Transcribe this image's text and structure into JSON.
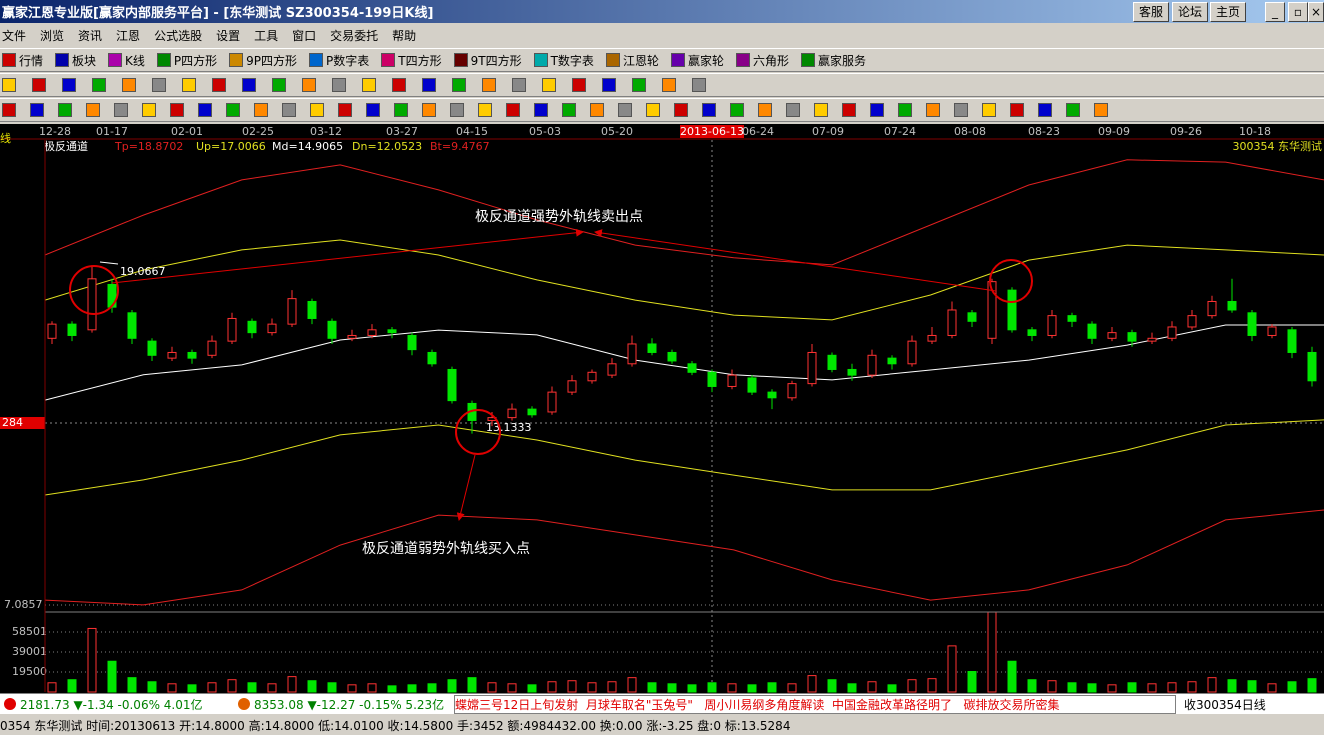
{
  "window": {
    "title": "赢家江恩专业版[赢家内部服务平台] - [东华测试   SZ300354-199日K线]",
    "buttons": [
      "客服",
      "论坛",
      "主页"
    ]
  },
  "menu": [
    "文件",
    "浏览",
    "资讯",
    "江恩",
    "公式选股",
    "设置",
    "工具",
    "窗口",
    "交易委托",
    "帮助"
  ],
  "toolbar": [
    "行情",
    "板块",
    "K线",
    "P四方形",
    "9P四方形",
    "P数字表",
    "T四方形",
    "9T四方形",
    "T数字表",
    "江恩轮",
    "赢家轮",
    "六角形",
    "赢家服务"
  ],
  "chart_data": {
    "type": "candlestick",
    "dates": [
      "12-28",
      "01-17",
      "02-01",
      "02-25",
      "03-12",
      "03-27",
      "04-15",
      "05-03",
      "05-20",
      "2013-06-13",
      "06-24",
      "07-09",
      "07-24",
      "08-08",
      "08-23",
      "09-09",
      "09-26",
      "10-18"
    ],
    "indicator": {
      "name": "极反通道",
      "Tp": "Tp=18.8702",
      "Up": "Up=17.0066",
      "Md": "Md=14.9065",
      "Dn": "Dn=12.0523",
      "Bt": "Bt=9.4767"
    },
    "stock_label": "300354 东华测试",
    "high_label": "19.0667",
    "low_label": "13.1333",
    "cursor_label": "284",
    "annotations": [
      "极反通道强势外轨线卖出点",
      "极反通道弱势外轨线买入点"
    ],
    "ylim": [
      7.0857,
      23.5
    ],
    "yticks": [
      7.0857
    ],
    "candles": [
      [
        16.5,
        17.1,
        16.3,
        17.0
      ],
      [
        17.0,
        17.1,
        16.4,
        16.6
      ],
      [
        16.8,
        19.0667,
        16.7,
        18.6
      ],
      [
        18.4,
        18.6,
        17.4,
        17.6
      ],
      [
        17.4,
        17.5,
        16.3,
        16.5
      ],
      [
        16.4,
        16.5,
        15.7,
        15.9
      ],
      [
        15.8,
        16.2,
        15.7,
        16.0
      ],
      [
        16.0,
        16.1,
        15.6,
        15.8
      ],
      [
        15.9,
        16.6,
        15.8,
        16.4
      ],
      [
        16.4,
        17.4,
        16.3,
        17.2
      ],
      [
        17.1,
        17.2,
        16.5,
        16.7
      ],
      [
        16.7,
        17.2,
        16.6,
        17.0
      ],
      [
        17.0,
        18.2,
        16.9,
        17.9
      ],
      [
        17.8,
        17.9,
        17.0,
        17.2
      ],
      [
        17.1,
        17.2,
        16.3,
        16.5
      ],
      [
        16.5,
        16.8,
        16.4,
        16.6
      ],
      [
        16.6,
        17.0,
        16.5,
        16.8
      ],
      [
        16.8,
        16.9,
        16.5,
        16.7
      ],
      [
        16.6,
        16.7,
        15.9,
        16.1
      ],
      [
        16.0,
        16.1,
        15.5,
        15.6
      ],
      [
        15.4,
        15.5,
        14.2,
        14.3
      ],
      [
        14.2,
        14.3,
        13.1333,
        13.6
      ],
      [
        13.6,
        13.9,
        13.4,
        13.7
      ],
      [
        13.7,
        14.2,
        13.6,
        14.0
      ],
      [
        14.0,
        14.1,
        13.7,
        13.8
      ],
      [
        13.9,
        14.8,
        13.8,
        14.6
      ],
      [
        14.6,
        15.2,
        14.5,
        15.0
      ],
      [
        15.0,
        15.4,
        14.9,
        15.3
      ],
      [
        15.2,
        15.8,
        15.1,
        15.6
      ],
      [
        15.6,
        16.6,
        15.5,
        16.3
      ],
      [
        16.3,
        16.5,
        15.9,
        16.0
      ],
      [
        16.0,
        16.1,
        15.6,
        15.7
      ],
      [
        15.6,
        15.7,
        15.2,
        15.3
      ],
      [
        15.3,
        15.4,
        14.6,
        14.8
      ],
      [
        14.8,
        15.4,
        14.7,
        15.2
      ],
      [
        15.1,
        15.2,
        14.5,
        14.6
      ],
      [
        14.6,
        14.7,
        14.0,
        14.4
      ],
      [
        14.4,
        15.0,
        14.3,
        14.9
      ],
      [
        14.9,
        16.3,
        14.8,
        16.0
      ],
      [
        15.9,
        16.0,
        15.3,
        15.4
      ],
      [
        15.4,
        15.6,
        15.0,
        15.2
      ],
      [
        15.2,
        16.1,
        15.1,
        15.9
      ],
      [
        15.8,
        15.9,
        15.4,
        15.6
      ],
      [
        15.6,
        16.6,
        15.5,
        16.4
      ],
      [
        16.4,
        16.9,
        16.3,
        16.6
      ],
      [
        16.6,
        17.8,
        16.5,
        17.5
      ],
      [
        17.4,
        17.5,
        16.9,
        17.1
      ],
      [
        16.5,
        18.6,
        16.3,
        18.5
      ],
      [
        18.2,
        18.3,
        16.7,
        16.8
      ],
      [
        16.8,
        16.9,
        16.4,
        16.6
      ],
      [
        16.6,
        17.5,
        16.5,
        17.3
      ],
      [
        17.3,
        17.4,
        16.9,
        17.1
      ],
      [
        17.0,
        17.1,
        16.3,
        16.5
      ],
      [
        16.5,
        16.9,
        16.4,
        16.7
      ],
      [
        16.7,
        16.8,
        16.2,
        16.4
      ],
      [
        16.4,
        16.7,
        16.3,
        16.5
      ],
      [
        16.5,
        17.1,
        16.4,
        16.9
      ],
      [
        16.9,
        17.5,
        16.8,
        17.3
      ],
      [
        17.3,
        18.0,
        17.2,
        17.8
      ],
      [
        17.8,
        18.6,
        17.4,
        17.5
      ],
      [
        17.4,
        17.5,
        16.4,
        16.6
      ],
      [
        16.6,
        17.0,
        16.5,
        16.9
      ],
      [
        16.8,
        16.9,
        15.8,
        16.0
      ],
      [
        16.0,
        16.2,
        14.8,
        15.0
      ]
    ],
    "bands": [
      {
        "color": "#e02020",
        "values": [
          19.44,
          20.85,
          22.09,
          22.62,
          21.74,
          20.68,
          19.79,
          19.34,
          19.09,
          20.5,
          21.91,
          22.8,
          22.72,
          22.09
        ]
      },
      {
        "color": "#e0e020",
        "values": [
          17.85,
          18.91,
          19.62,
          19.97,
          19.44,
          18.56,
          17.85,
          17.32,
          17.15,
          18.03,
          19.26,
          19.79,
          19.62,
          19.44
        ]
      },
      {
        "color": "#ffffff",
        "values": [
          14.32,
          15.21,
          15.56,
          16.44,
          16.79,
          16.62,
          15.73,
          15.21,
          15.03,
          15.38,
          15.73,
          16.26,
          16.97,
          16.97
        ]
      },
      {
        "color": "#e0e020",
        "values": [
          10.97,
          11.5,
          12.2,
          13.09,
          13.44,
          12.91,
          12.2,
          11.67,
          11.15,
          11.15,
          11.85,
          12.56,
          13.44,
          13.62
        ]
      },
      {
        "color": "#e02020",
        "values": [
          7.26,
          7.09,
          7.62,
          9.2,
          10.26,
          10.09,
          9.56,
          9.03,
          7.97,
          7.26,
          7.62,
          8.5,
          10.09,
          10.44
        ]
      }
    ],
    "volume": [
      9000,
      12000,
      62000,
      30000,
      14000,
      10000,
      8000,
      7000,
      9000,
      12000,
      9000,
      8000,
      15000,
      11000,
      9000,
      7000,
      8000,
      6000,
      7000,
      8000,
      12000,
      14000,
      9000,
      8000,
      7000,
      10000,
      11000,
      9000,
      10000,
      14000,
      9000,
      8000,
      7000,
      9000,
      8000,
      7000,
      9000,
      8000,
      16000,
      12000,
      8000,
      10000,
      7000,
      12000,
      13000,
      45000,
      20000,
      78000,
      30000,
      12000,
      11000,
      9000,
      8000,
      7000,
      9000,
      8000,
      9000,
      10000,
      14000,
      12000,
      11000,
      8000,
      10000,
      13000
    ],
    "vol_ylim": [
      0,
      80000
    ],
    "vol_yticks": [
      19500,
      39001,
      58501
    ]
  },
  "status": {
    "sh": "2181.73 ▼-1.34 -0.06% 4.01亿",
    "sz": "8353.08 ▼-12.27 -0.15% 5.23亿",
    "news": "蝶嫦三号12日上旬发射  月球车取名\"玉兔号\"   周小川易纲多角度解读  中国金融改革路径明了   碳排放交易所密集",
    "right": "收300354日线"
  },
  "info": "0354 东华测试 时间:20130613 开:14.8000 高:14.8000 低:14.0100 收:14.5800 手:3452 额:4984432.00 换:0.00 涨:-3.25 盘:0 标:13.5284"
}
